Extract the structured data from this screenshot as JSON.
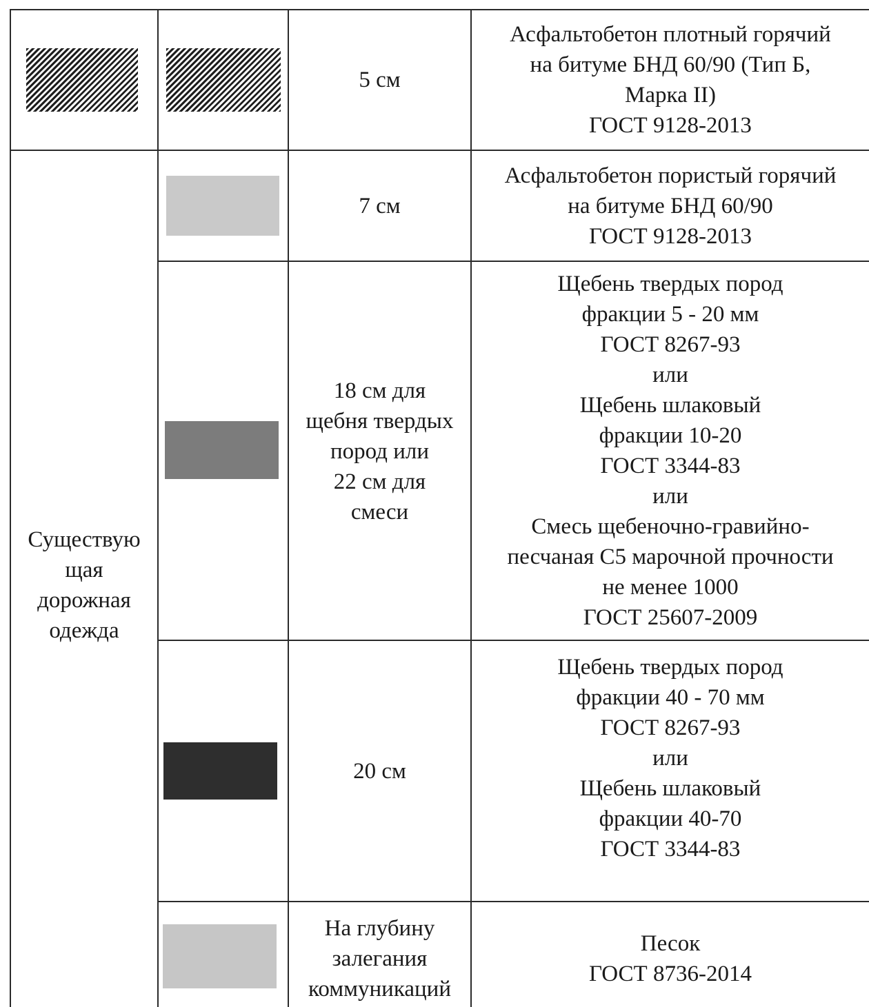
{
  "layers": [
    {
      "thickness": "5 см",
      "description": "Асфальтобетон плотный горячий\nна битуме БНД 60/90 (Тип Б,\nМарка II)\nГОСТ 9128-2013",
      "swatch_style": "hatch"
    },
    {
      "thickness": "7 см",
      "description": "Асфальтобетон пористый горячий\nна битуме БНД 60/90\nГОСТ 9128-2013",
      "swatch_color": "#c9c9c9"
    },
    {
      "thickness": "18 см для\nщебня твердых\nпород или\n22 см для\nсмеси",
      "description": "Щебень твердых пород\nфракции 5 - 20 мм\nГОСТ 8267-93\nили\nЩебень шлаковый\nфракции 10-20\nГОСТ 3344-83\nили\nСмесь щебеночно-гравийно-\nпесчаная С5 марочной прочности\nне менее 1000\nГОСТ 25607-2009",
      "swatch_color": "#7c7c7c"
    },
    {
      "thickness": "20 см",
      "description": "Щебень твердых пород\nфракции 40 - 70 мм\nГОСТ 8267-93\nили\nЩебень шлаковый\nфракции 40-70\nГОСТ 3344-83",
      "swatch_color": "#2e2e2e"
    },
    {
      "thickness": "На глубину\nзалегания\nкоммуникаций",
      "description": "Песок\nГОСТ 8736-2014",
      "swatch_color": "#c6c6c6"
    }
  ],
  "group_label": "Существую\nщая\nдорожная\nодежда"
}
